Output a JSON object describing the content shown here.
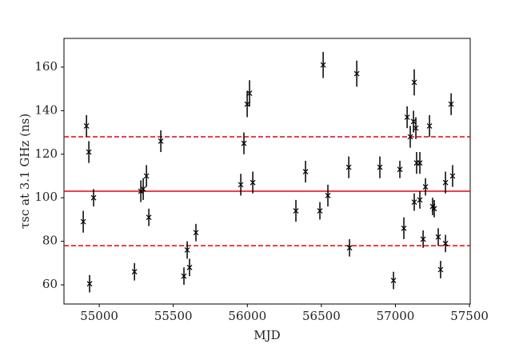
{
  "chart_data": {
    "type": "scatter",
    "xlabel": "MJD",
    "ylabel": "τsc at 3.1 GHz (ns)",
    "xlim": [
      54762,
      57505
    ],
    "ylim": [
      51.2,
      173.2
    ],
    "xticks": [
      55000,
      55500,
      56000,
      56500,
      57000,
      57500
    ],
    "yticks": [
      60,
      80,
      100,
      120,
      140,
      160
    ],
    "color": "#000000",
    "hline_color": "#e8000b",
    "hlines": [
      {
        "value": 103,
        "style": "solid"
      },
      {
        "value": 128,
        "style": "dashed"
      },
      {
        "value": 78,
        "style": "dashed"
      }
    ],
    "x": [
      54892,
      54914,
      54930,
      54935,
      54962,
      55238,
      55281,
      55297,
      55319,
      55335,
      55416,
      55572,
      55594,
      55610,
      55653,
      55956,
      55977,
      55999,
      56015,
      56037,
      56328,
      56393,
      56490,
      56512,
      56544,
      56685,
      56690,
      56739,
      56895,
      56987,
      57030,
      57057,
      57079,
      57100,
      57122,
      57127,
      57138,
      57127,
      57143,
      57165,
      57165,
      57187,
      57203,
      57230,
      57251,
      57262,
      57289,
      57305,
      57338,
      57338,
      57376,
      57386
    ],
    "values": [
      89,
      133,
      121,
      60.5,
      100,
      66,
      103,
      104,
      110,
      91,
      126,
      64,
      76,
      68,
      84,
      106,
      125,
      143,
      148,
      107,
      94,
      112,
      94,
      161,
      101,
      114,
      77,
      157,
      114,
      62,
      113,
      86,
      137,
      128,
      135,
      153,
      132,
      98,
      116,
      116,
      99,
      81,
      105,
      133,
      96,
      95,
      82,
      67,
      107,
      79,
      143,
      110
    ],
    "errors": [
      5,
      5,
      5,
      4,
      4,
      4,
      5,
      5,
      5,
      4,
      5,
      4,
      4,
      4,
      4,
      5,
      5,
      6,
      6,
      5,
      5,
      5,
      4,
      6,
      5,
      5,
      4,
      6,
      5,
      4,
      4,
      5,
      5,
      5,
      5,
      6,
      5,
      4,
      5,
      5,
      4,
      4,
      4,
      5,
      4,
      4,
      4,
      4,
      5,
      4,
      5,
      5
    ]
  }
}
